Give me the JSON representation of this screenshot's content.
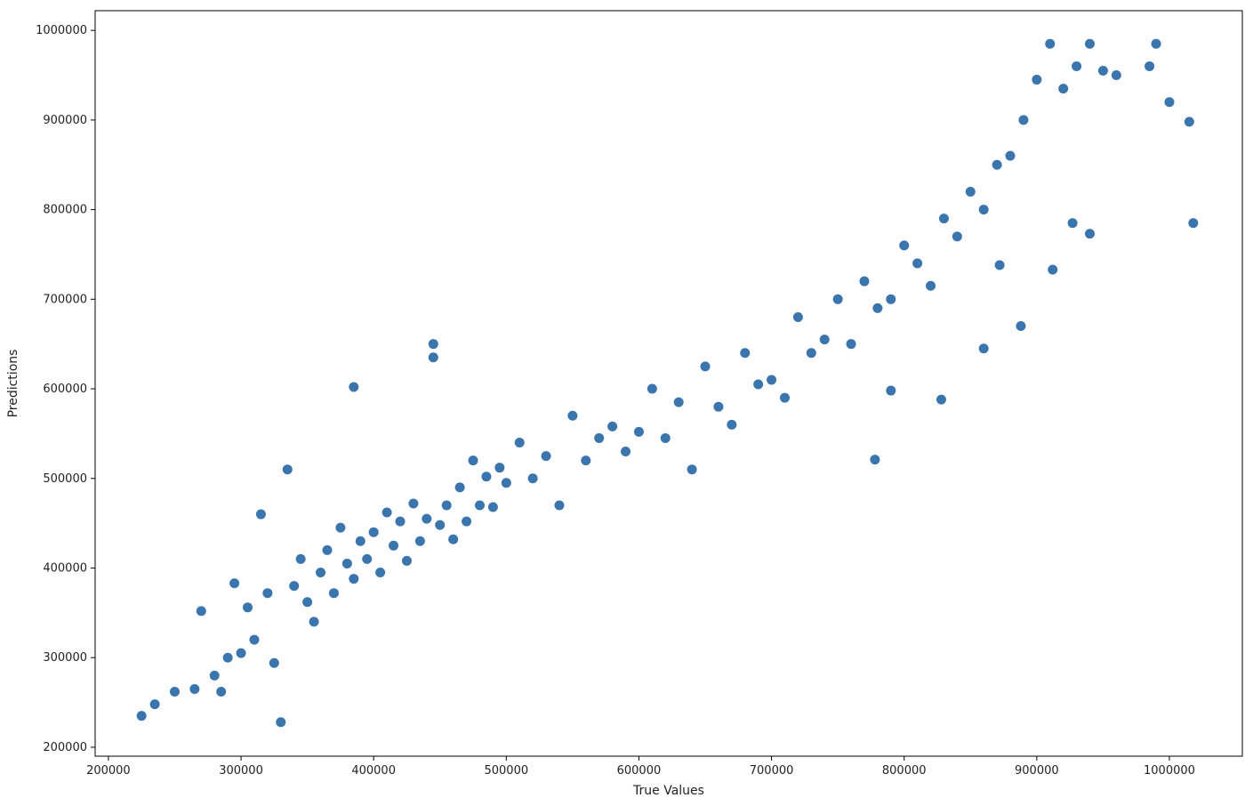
{
  "chart_data": {
    "type": "scatter",
    "title": "",
    "xlabel": "True Values",
    "ylabel": "Predictions",
    "xlim": [
      190000,
      1055000
    ],
    "ylim": [
      190000,
      1022000
    ],
    "xticks": [
      200000,
      300000,
      400000,
      500000,
      600000,
      700000,
      800000,
      900000,
      1000000
    ],
    "yticks": [
      200000,
      300000,
      400000,
      500000,
      600000,
      700000,
      800000,
      900000,
      1000000
    ],
    "xtick_labels": [
      "200000",
      "300000",
      "400000",
      "500000",
      "600000",
      "700000",
      "800000",
      "900000",
      "1000000"
    ],
    "ytick_labels": [
      "200000",
      "300000",
      "400000",
      "500000",
      "600000",
      "700000",
      "800000",
      "900000",
      "1000000"
    ],
    "grid": false,
    "legend": "none",
    "marker_color": "#3a75ad",
    "series": [
      {
        "x": [
          225000,
          235000,
          250000,
          265000,
          270000,
          280000,
          285000,
          290000,
          295000,
          300000,
          305000,
          310000,
          315000,
          320000,
          325000,
          330000,
          335000,
          340000,
          345000,
          350000,
          355000,
          360000,
          365000,
          370000,
          375000,
          380000,
          385000,
          390000,
          395000,
          400000,
          405000,
          410000,
          415000,
          420000,
          425000,
          430000,
          435000,
          440000,
          445000,
          450000,
          455000,
          460000,
          465000,
          470000,
          475000,
          480000,
          485000,
          490000,
          495000,
          500000,
          510000,
          520000,
          530000,
          540000,
          550000,
          560000,
          570000,
          580000,
          590000,
          600000,
          610000,
          620000,
          630000,
          640000,
          650000,
          660000,
          670000,
          680000,
          690000,
          700000,
          710000,
          720000,
          730000,
          740000,
          750000,
          760000,
          770000,
          780000,
          790000,
          800000,
          810000,
          820000,
          830000,
          840000,
          850000,
          860000,
          870000,
          880000,
          890000,
          900000,
          910000,
          920000,
          930000,
          940000,
          950000,
          960000,
          985000,
          990000,
          1000000,
          1015000,
          1018000,
          385000,
          445000,
          778000,
          790000,
          828000,
          888000,
          912000,
          927000,
          940000,
          860000,
          872000
        ],
        "y": [
          235000,
          248000,
          262000,
          265000,
          352000,
          280000,
          262000,
          300000,
          383000,
          305000,
          356000,
          320000,
          460000,
          372000,
          294000,
          228000,
          510000,
          380000,
          410000,
          362000,
          340000,
          395000,
          420000,
          372000,
          445000,
          405000,
          388000,
          430000,
          410000,
          440000,
          395000,
          462000,
          425000,
          452000,
          408000,
          472000,
          430000,
          455000,
          650000,
          448000,
          470000,
          432000,
          490000,
          452000,
          520000,
          470000,
          502000,
          468000,
          512000,
          495000,
          540000,
          500000,
          525000,
          470000,
          570000,
          520000,
          545000,
          558000,
          530000,
          552000,
          600000,
          545000,
          585000,
          510000,
          625000,
          580000,
          560000,
          640000,
          605000,
          610000,
          590000,
          680000,
          640000,
          655000,
          700000,
          650000,
          720000,
          690000,
          700000,
          760000,
          740000,
          715000,
          790000,
          770000,
          820000,
          800000,
          850000,
          860000,
          900000,
          945000,
          985000,
          935000,
          960000,
          985000,
          955000,
          950000,
          960000,
          985000,
          920000,
          898000,
          785000,
          602000,
          635000,
          521000,
          598000,
          588000,
          670000,
          733000,
          785000,
          773000,
          645000,
          738000
        ]
      }
    ]
  }
}
